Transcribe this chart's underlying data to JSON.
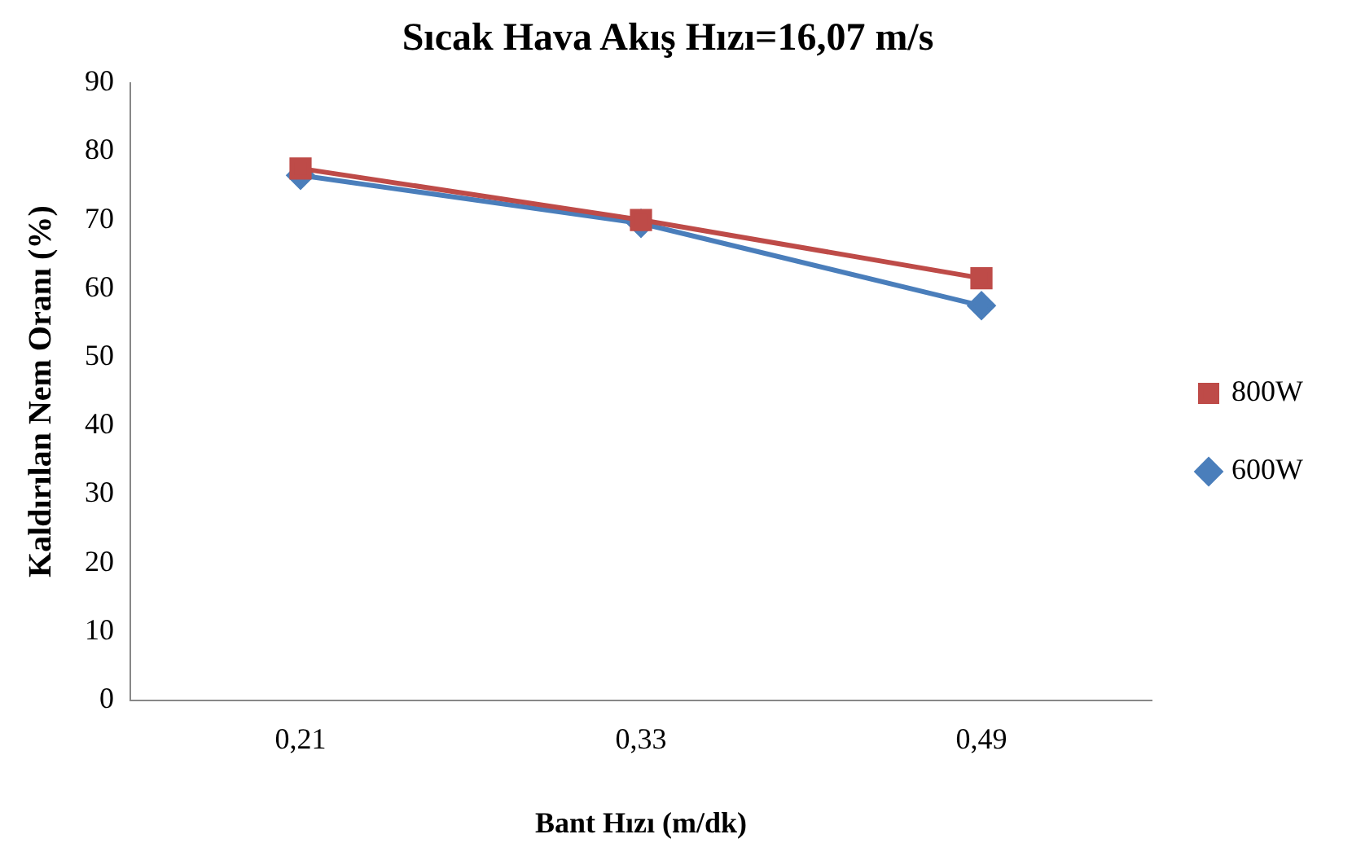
{
  "chart_data": {
    "type": "line",
    "title": "Sıcak Hava Akış Hızı=16,07 m/s",
    "xlabel": "Bant Hızı (m/dk)",
    "ylabel": "Kaldırılan Nem Oranı (%)",
    "categories": [
      "0,21",
      "0,33",
      "0,49"
    ],
    "series": [
      {
        "name": "600W",
        "color": "#4a7ebb",
        "values": [
          76.5,
          69.5,
          57.5
        ],
        "marker": "diamond"
      },
      {
        "name": "800W",
        "color": "#be4b48",
        "values": [
          77.5,
          70,
          61.5
        ],
        "marker": "square"
      }
    ],
    "ylim": [
      0,
      90
    ],
    "yticks": [
      0,
      10,
      20,
      30,
      40,
      50,
      60,
      70,
      80,
      90
    ],
    "grid": false,
    "legend": "right"
  }
}
